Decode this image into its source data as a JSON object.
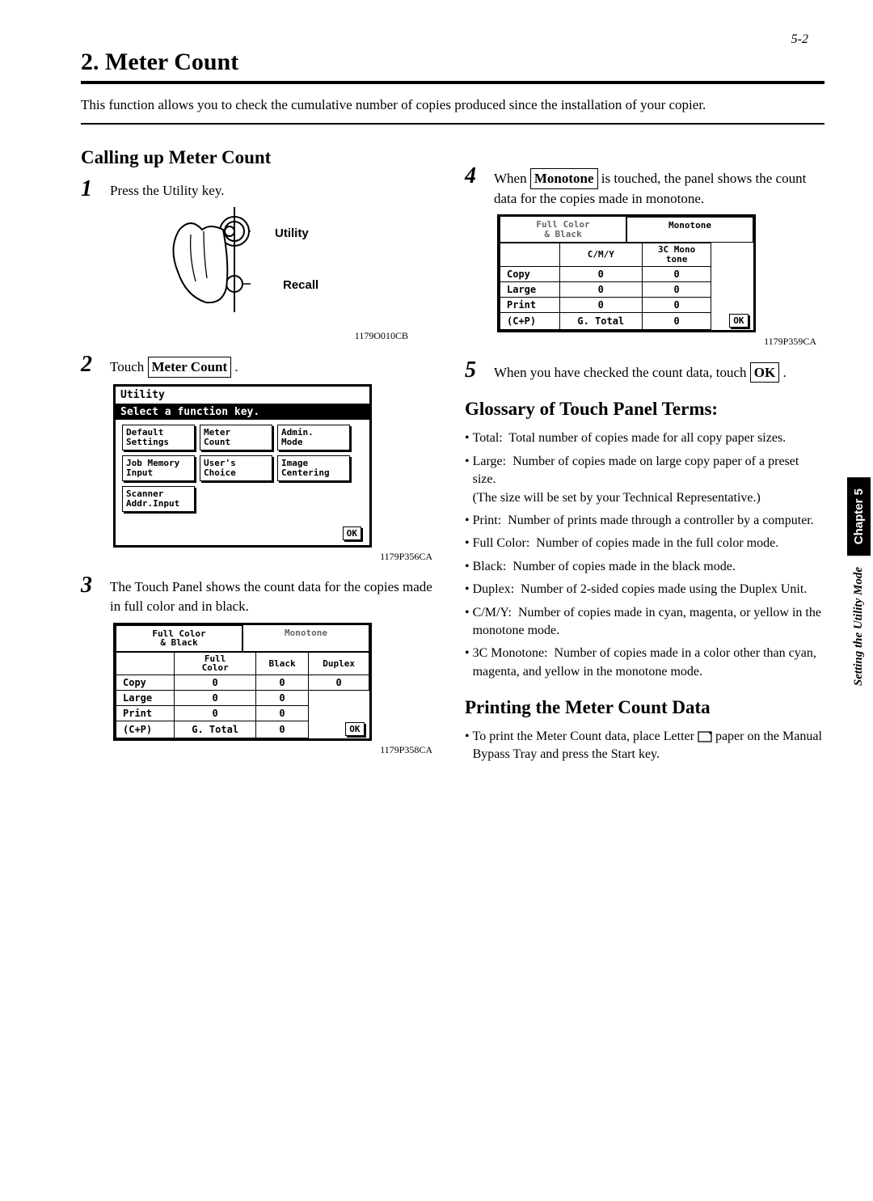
{
  "page_number": "5-2",
  "title": "2. Meter Count",
  "intro": "This function allows you to check the cumulative number of copies produced since the installation of your copier.",
  "subhead_calling": "Calling up Meter Count",
  "step1": {
    "text": "Press the Utility key."
  },
  "utility_labels": {
    "utility": "Utility",
    "recall": "Recall"
  },
  "caption1": "1179O010CB",
  "step2": {
    "prefix": "Touch ",
    "box": "Meter Count",
    "suffix": " ."
  },
  "utility_panel": {
    "header": "Utility",
    "subheader": "Select a function key.",
    "buttons": [
      [
        "Default\nSettings",
        "Meter\nCount",
        "Admin.\nMode"
      ],
      [
        "Job Memory\nInput",
        "User's\nChoice",
        "Image\nCentering"
      ],
      [
        "Scanner\nAddr.Input"
      ]
    ],
    "ok": "OK"
  },
  "caption2": "1179P356CA",
  "step3": {
    "text": "The Touch Panel shows the count data for the copies made in full color and in black."
  },
  "meter1": {
    "tab1": "Full Color\n& Black",
    "tab2": "Monotone",
    "cols": [
      "",
      "Full\nColor",
      "Black",
      "Duplex"
    ],
    "rows": [
      [
        "Copy",
        "0",
        "0",
        "0"
      ],
      [
        "Large",
        "0",
        "0",
        ""
      ],
      [
        "Print",
        "0",
        "0",
        ""
      ]
    ],
    "cp": "(C+P)",
    "gtotal": "G. Total",
    "gtotal_val": "0",
    "ok": "OK"
  },
  "caption3": "1179P358CA",
  "step4": {
    "prefix": "When ",
    "box": "Monotone",
    "suffix": " is touched, the panel shows the count data for the copies made in monotone."
  },
  "meter2": {
    "tab1": "Full Color\n& Black",
    "tab2": "Monotone",
    "cols": [
      "",
      "C/M/Y",
      "3C Mono\ntone"
    ],
    "rows": [
      [
        "Copy",
        "0",
        "0"
      ],
      [
        "Large",
        "0",
        "0"
      ],
      [
        "Print",
        "0",
        "0"
      ]
    ],
    "cp": "(C+P)",
    "gtotal": "G. Total",
    "gtotal_val": "0",
    "ok": "OK"
  },
  "caption4": "1179P359CA",
  "step5": {
    "prefix": "When you have checked the count data, touch ",
    "box": "OK",
    "suffix": " ."
  },
  "subhead_glossary": "Glossary of Touch Panel Terms:",
  "glossary": [
    {
      "term": "Total:",
      "def": "Total number of copies made for all copy paper sizes."
    },
    {
      "term": "Large:",
      "def": "Number of copies made on large copy paper of a preset size.\n(The size will be set by your Technical Representative.)"
    },
    {
      "term": "Print:",
      "def": "Number of prints made through a controller by a computer."
    },
    {
      "term": "Full Color:",
      "def": "Number of copies made in the full color mode."
    },
    {
      "term": "Black:",
      "def": "Number of copies made in the black mode."
    },
    {
      "term": "Duplex:",
      "def": "Number of 2-sided copies made using the Duplex Unit."
    },
    {
      "term": "C/M/Y:",
      "def": "Number of copies made in cyan, magenta, or yellow in the monotone mode."
    },
    {
      "term": "3C Monotone:",
      "def": "Number of copies made in a color other than cyan, magenta, and yellow in the monotone mode."
    }
  ],
  "subhead_printing": "Printing the Meter Count Data",
  "printing_bullet": {
    "prefix": "To print the Meter Count data, place Letter ",
    "suffix": " paper on the Manual Bypass Tray and press the Start key."
  },
  "side": {
    "chapter": "Chapter 5",
    "mode": "Setting the Utility Mode"
  }
}
